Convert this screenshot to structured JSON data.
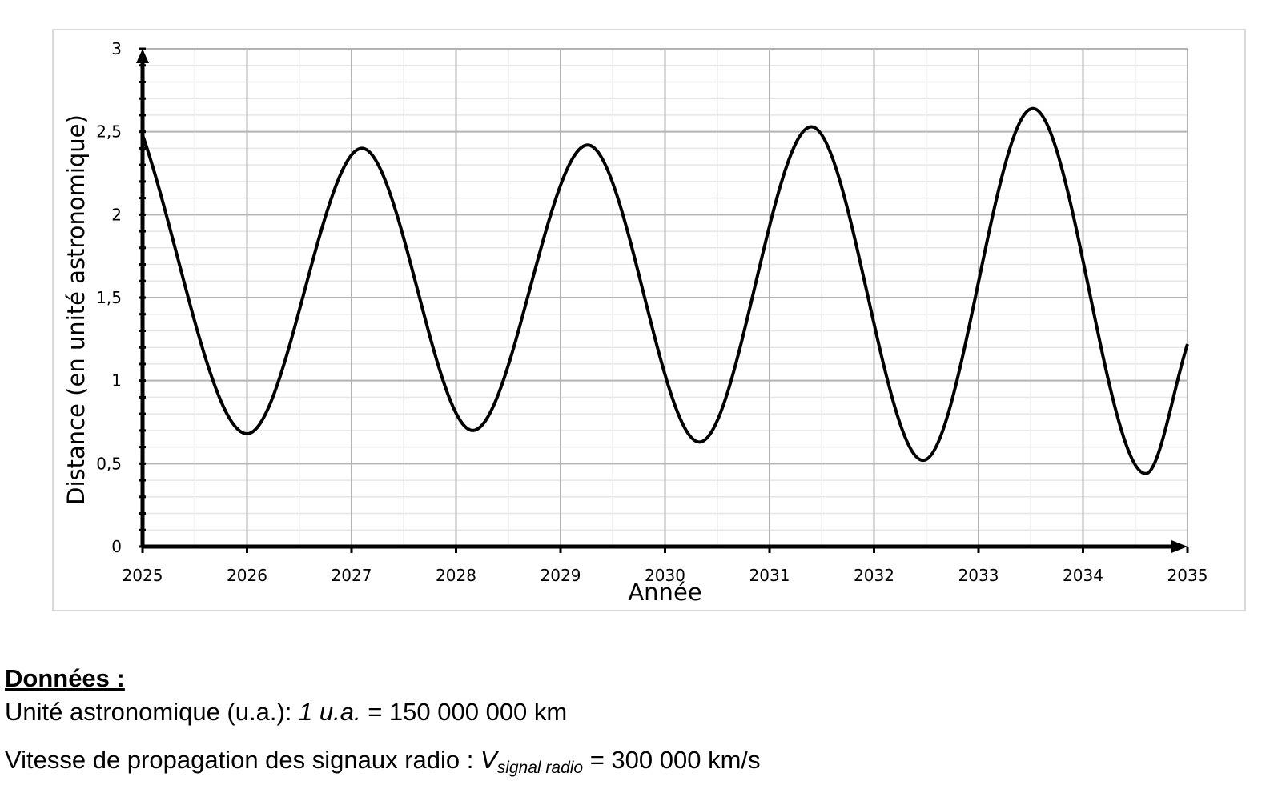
{
  "chart_data": {
    "type": "line",
    "x_label": "Année",
    "y_label": "Distance (en unité astronomique)",
    "x": [
      2025,
      2026.0,
      2027.1,
      2028.16,
      2029.26,
      2030.33,
      2031.4,
      2032.47,
      2033.52,
      2034.6,
      2035
    ],
    "series": [
      {
        "color": "#000000",
        "values": [
          2.48,
          0.68,
          2.4,
          0.7,
          2.42,
          0.63,
          2.53,
          0.52,
          2.64,
          0.44,
          1.22
        ]
      }
    ],
    "xlim": [
      2025,
      2035
    ],
    "xticks": [
      2025,
      2026,
      2027,
      2028,
      2029,
      2030,
      2031,
      2032,
      2033,
      2034,
      2035
    ],
    "ylim": [
      0,
      3
    ],
    "yticks": [
      0,
      {
        "value": 0.5,
        "label": "0,5"
      },
      1,
      {
        "value": 1.5,
        "label": "1,5"
      },
      2,
      {
        "value": 2.5,
        "label": "2,5"
      },
      3
    ],
    "grid": true,
    "minor_grid": true
  },
  "notes": {
    "heading": "Données :",
    "lines": [
      [
        "Unité astronomique (u.a.): ",
        "1 u.a.",
        " = 150 000 000 km"
      ],
      [
        "Vitesse de propagation des signaux radio : ",
        "V",
        "signal radio",
        " = 300 000 km/s"
      ]
    ]
  }
}
